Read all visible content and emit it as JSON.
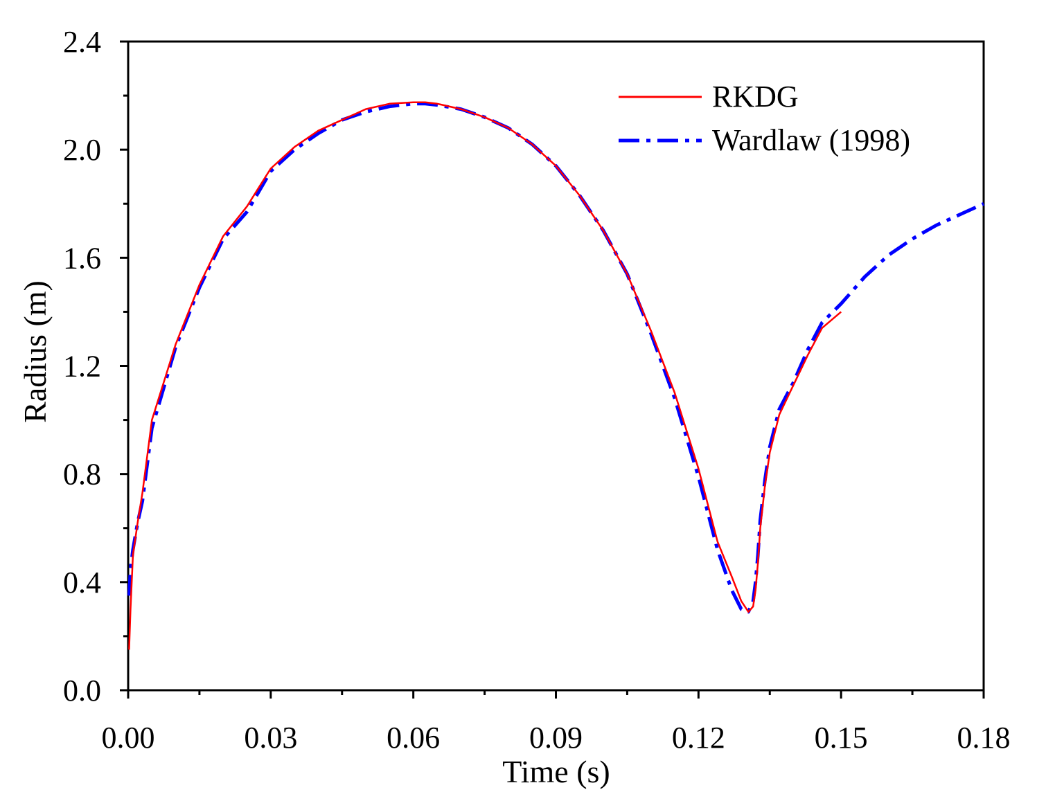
{
  "chart_data": {
    "type": "line",
    "title": "",
    "xlabel": "Time (s)",
    "ylabel": "Radius (m)",
    "xlim": [
      0.0,
      0.18
    ],
    "ylim": [
      0.0,
      2.4
    ],
    "xticks": [
      0.0,
      0.03,
      0.06,
      0.09,
      0.12,
      0.15,
      0.18
    ],
    "xtick_labels": [
      "0.00",
      "0.03",
      "0.06",
      "0.09",
      "0.12",
      "0.15",
      "0.18"
    ],
    "yticks": [
      0.0,
      0.4,
      0.8,
      1.2,
      1.6,
      2.0,
      2.4
    ],
    "ytick_labels": [
      "0.0",
      "0.4",
      "0.8",
      "1.2",
      "1.6",
      "2.0",
      "2.4"
    ],
    "grid": false,
    "legend_position": "top-right",
    "series": [
      {
        "name": "RKDG",
        "color": "#ff0000",
        "style": "solid",
        "x": [
          0.0002,
          0.0005,
          0.001,
          0.002,
          0.003,
          0.005,
          0.0075,
          0.01,
          0.015,
          0.02,
          0.025,
          0.03,
          0.035,
          0.04,
          0.045,
          0.05,
          0.055,
          0.06,
          0.0625,
          0.065,
          0.07,
          0.075,
          0.08,
          0.085,
          0.09,
          0.095,
          0.1,
          0.105,
          0.11,
          0.115,
          0.12,
          0.124,
          0.127,
          0.129,
          0.1305,
          0.1315,
          0.132,
          0.1325,
          0.133,
          0.134,
          0.135,
          0.137,
          0.14,
          0.143,
          0.146,
          0.15
        ],
        "y": [
          0.15,
          0.3,
          0.5,
          0.62,
          0.73,
          1.0,
          1.14,
          1.28,
          1.5,
          1.68,
          1.79,
          1.93,
          2.01,
          2.07,
          2.11,
          2.15,
          2.17,
          2.175,
          2.175,
          2.17,
          2.15,
          2.12,
          2.08,
          2.02,
          1.94,
          1.83,
          1.7,
          1.54,
          1.33,
          1.1,
          0.82,
          0.55,
          0.42,
          0.33,
          0.29,
          0.31,
          0.37,
          0.47,
          0.6,
          0.76,
          0.88,
          1.02,
          1.13,
          1.24,
          1.34,
          1.4
        ]
      },
      {
        "name": "Wardlaw (1998)",
        "color": "#0000ff",
        "style": "dashdot",
        "x": [
          0.0002,
          0.0005,
          0.001,
          0.002,
          0.003,
          0.005,
          0.0075,
          0.01,
          0.015,
          0.02,
          0.025,
          0.03,
          0.035,
          0.04,
          0.045,
          0.05,
          0.055,
          0.06,
          0.0625,
          0.065,
          0.07,
          0.075,
          0.08,
          0.085,
          0.09,
          0.095,
          0.1,
          0.105,
          0.11,
          0.115,
          0.12,
          0.124,
          0.127,
          0.129,
          0.1305,
          0.1315,
          0.132,
          0.1325,
          0.133,
          0.134,
          0.135,
          0.137,
          0.14,
          0.143,
          0.146,
          0.15,
          0.155,
          0.16,
          0.165,
          0.17,
          0.175,
          0.18
        ],
        "y": [
          0.35,
          0.45,
          0.52,
          0.62,
          0.7,
          0.97,
          1.12,
          1.27,
          1.49,
          1.67,
          1.77,
          1.92,
          2.0,
          2.06,
          2.11,
          2.14,
          2.16,
          2.17,
          2.17,
          2.165,
          2.15,
          2.12,
          2.08,
          2.02,
          1.94,
          1.83,
          1.7,
          1.54,
          1.32,
          1.08,
          0.79,
          0.52,
          0.37,
          0.3,
          0.29,
          0.33,
          0.4,
          0.5,
          0.63,
          0.78,
          0.9,
          1.04,
          1.14,
          1.26,
          1.36,
          1.43,
          1.53,
          1.61,
          1.67,
          1.72,
          1.76,
          1.8
        ]
      }
    ]
  }
}
